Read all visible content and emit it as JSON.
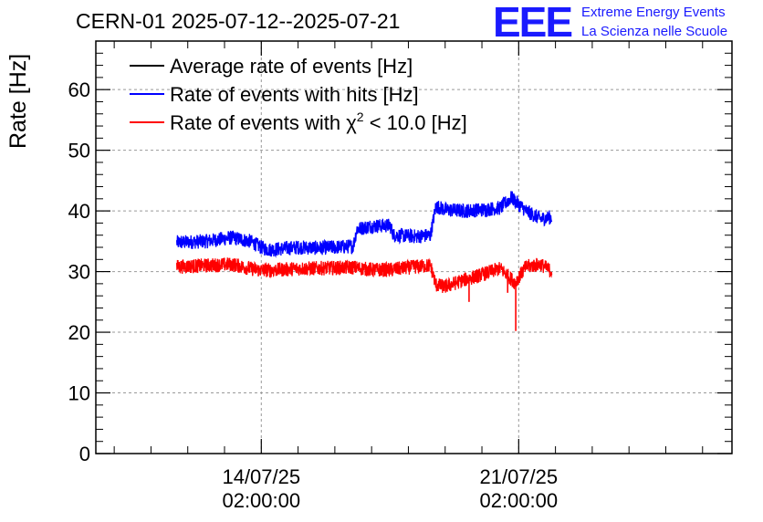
{
  "chart_data": {
    "type": "line",
    "title": "CERN-01 2025-07-12--2025-07-21",
    "ylabel": "Rate [Hz]",
    "xlabel": "",
    "logo": {
      "mark": "EEE",
      "line1": "Extreme Energy Events",
      "line2": "La Scienza nelle Scuole",
      "color": "#1a1aff"
    },
    "ylim": [
      0,
      68
    ],
    "yticks": [
      0,
      10,
      20,
      30,
      40,
      50,
      60
    ],
    "xlim_days": [
      -4.5,
      12.8
    ],
    "xticks": [
      {
        "day": 0,
        "date": "14/07/25",
        "time": "02:00:00"
      },
      {
        "day": 7,
        "date": "21/07/25",
        "time": "02:00:00"
      }
    ],
    "grid": true,
    "legend_position": "top-left",
    "legend": [
      {
        "text": "Average rate of events [Hz]",
        "color": "#000000"
      },
      {
        "text": "Rate of events with hits [Hz]",
        "color": "#0000ff"
      },
      {
        "text_pre": "Rate of events with ",
        "symbol": "χ",
        "sup": "2",
        "text_post": " < 10.0 [Hz]",
        "color": "#ff0000"
      }
    ],
    "series": [
      {
        "name": "Rate of events with hits [Hz]",
        "color": "#0000ff",
        "noise": 1.2,
        "x": [
          -2.3,
          -1.5,
          -0.8,
          -0.3,
          0.0,
          0.2,
          1.0,
          1.5,
          2.0,
          2.5,
          2.6,
          3.0,
          3.5,
          3.6,
          4.2,
          4.6,
          4.75,
          5.0,
          5.5,
          6.0,
          6.5,
          6.8,
          7.2,
          7.6,
          7.9
        ],
        "y": [
          34.8,
          35.0,
          35.6,
          35.0,
          34.0,
          33.6,
          34.0,
          33.9,
          34.0,
          34.2,
          37.0,
          37.5,
          37.6,
          36.0,
          35.8,
          36.0,
          40.8,
          40.2,
          40.0,
          40.2,
          40.5,
          42.2,
          40.0,
          38.7,
          39.0
        ]
      },
      {
        "name": "Rate of events with χ² < 10.0 [Hz]",
        "color": "#ff0000",
        "noise": 1.2,
        "x": [
          -2.3,
          -1.5,
          -0.8,
          -0.3,
          0.0,
          0.5,
          1.0,
          2.0,
          2.5,
          3.0,
          3.5,
          4.2,
          4.6,
          4.75,
          5.0,
          5.5,
          6.0,
          6.5,
          6.9,
          7.2,
          7.6,
          7.9
        ],
        "y": [
          30.8,
          31.0,
          31.2,
          30.5,
          30.2,
          30.3,
          30.5,
          30.6,
          30.7,
          30.3,
          30.3,
          30.8,
          31.0,
          27.8,
          27.5,
          28.6,
          29.5,
          30.5,
          28.2,
          30.8,
          31.2,
          30.0
        ]
      }
    ],
    "spikes": [
      {
        "color": "#ff0000",
        "x": 5.65,
        "y": 25.0
      },
      {
        "color": "#ff0000",
        "x": 6.7,
        "y": 26.5
      },
      {
        "color": "#ff0000",
        "x": 6.92,
        "y": 20.2
      }
    ]
  }
}
